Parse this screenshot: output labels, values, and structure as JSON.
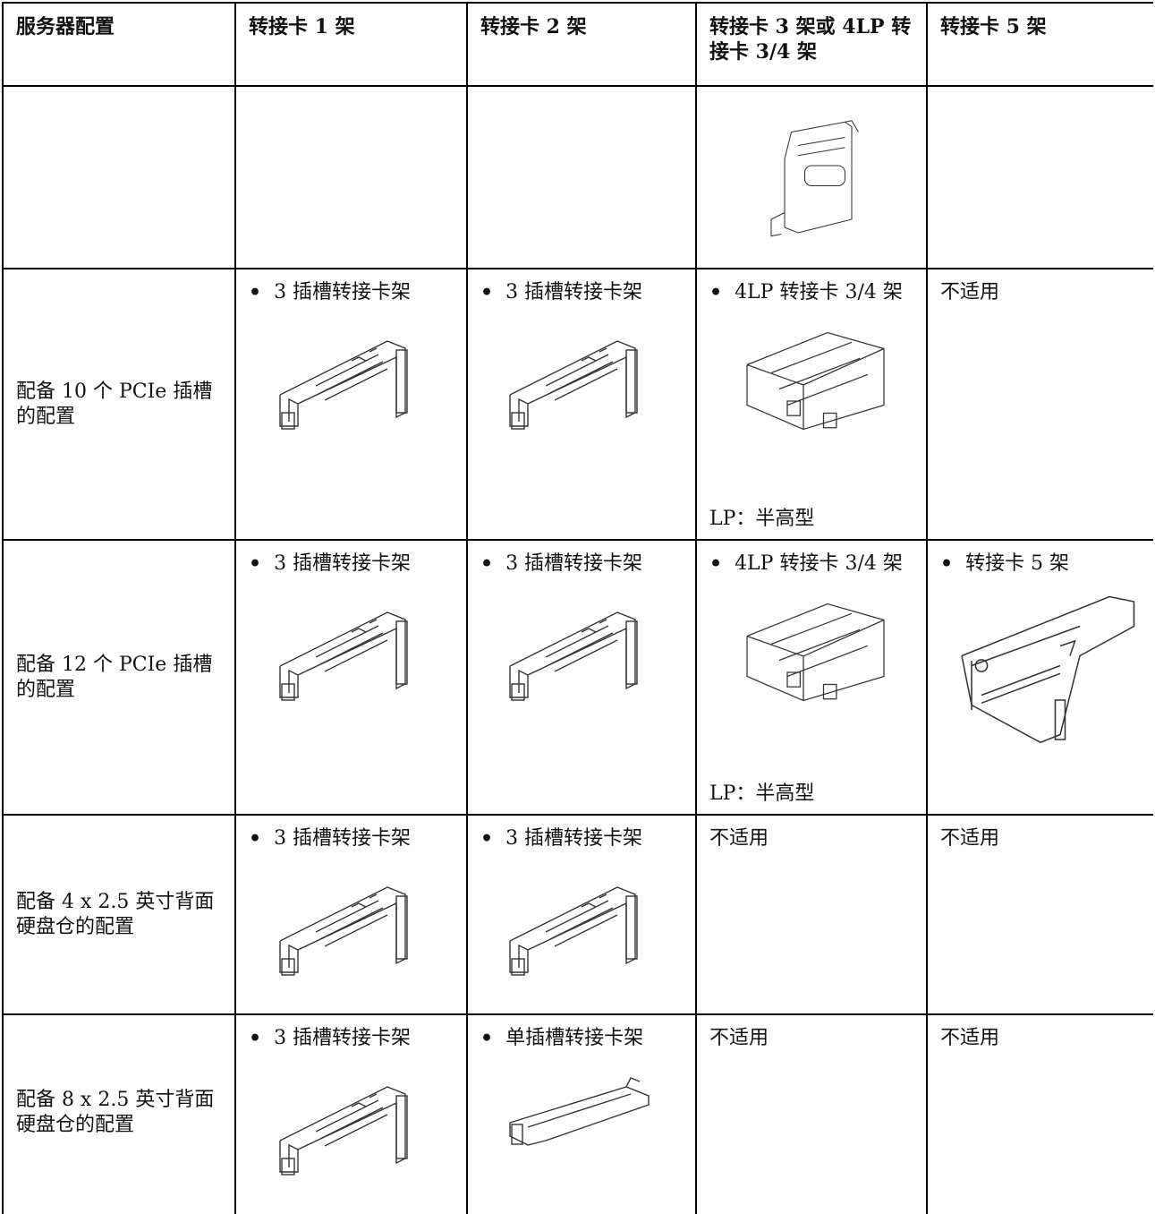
{
  "table": {
    "header": [
      "服务器配置",
      "转接卡 1 架",
      "转接卡 2 架",
      "转接卡 3 架或 4LP 转接卡 3/4 架",
      "转接卡 5 架"
    ],
    "rows": [
      {
        "config": "配备 10 个 PCIe 插槽的配置",
        "cells": [
          {
            "bullet": "3 插槽转接卡架"
          },
          {
            "bullet": "3 插槽转接卡架"
          },
          {
            "bullet": "4LP 转接卡 3/4 架",
            "note": "LP：半高型"
          },
          {
            "text": "不适用"
          }
        ]
      },
      {
        "config": "配备 12 个 PCIe 插槽的配置",
        "cells": [
          {
            "bullet": "3 插槽转接卡架"
          },
          {
            "bullet": "3 插槽转接卡架"
          },
          {
            "bullet": "4LP 转接卡 3/4 架",
            "note": "LP：半高型"
          },
          {
            "bullet": "转接卡 5 架"
          }
        ]
      },
      {
        "config": "配备 4 x 2.5 英寸背面硬盘仓的配置",
        "cells": [
          {
            "bullet": "3 插槽转接卡架"
          },
          {
            "bullet": "3 插槽转接卡架"
          },
          {
            "text": "不适用"
          },
          {
            "text": "不适用"
          }
        ]
      },
      {
        "config": "配备 8 x 2.5 英寸背面硬盘仓的配置",
        "cells": [
          {
            "bullet": "3 插槽转接卡架"
          },
          {
            "bullet": "单插槽转接卡架"
          },
          {
            "text": "不适用"
          },
          {
            "text": "不适用"
          }
        ]
      }
    ]
  }
}
